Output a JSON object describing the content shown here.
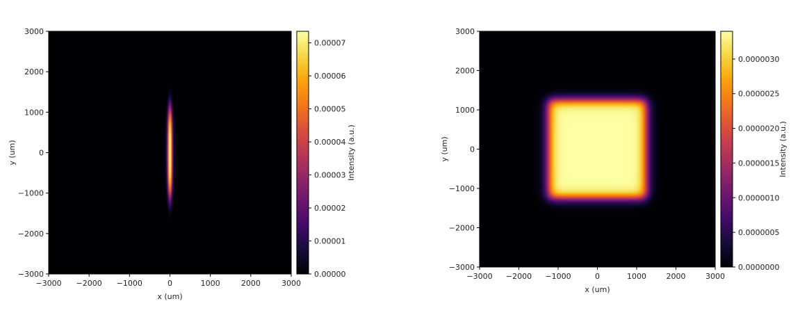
{
  "chart_data": [
    {
      "type": "heatmap",
      "xlabel": "x (um)",
      "ylabel": "y (um)",
      "xlim": [
        -3000,
        3000
      ],
      "ylim": [
        -3000,
        3000
      ],
      "xticks": [
        -3000,
        -2000,
        -1000,
        0,
        1000,
        2000,
        3000
      ],
      "yticks": [
        -3000,
        -2000,
        -1000,
        0,
        1000,
        2000,
        3000
      ],
      "x_tick_labels": [
        "−3000",
        "−2000",
        "−1000",
        "0",
        "1000",
        "2000",
        "3000"
      ],
      "y_tick_labels": [
        "−3000",
        "−2000",
        "−1000",
        "0",
        "1000",
        "2000",
        "3000"
      ],
      "colormap": "inferno",
      "colorbar": {
        "label": "Intensity (a.u.)",
        "range": [
          0,
          7.35e-05
        ],
        "ticks": [
          0,
          1e-05,
          2e-05,
          3e-05,
          4e-05,
          5e-05,
          6e-05,
          7e-05
        ],
        "tick_labels": [
          "0.00000",
          "0.00001",
          "0.00002",
          "0.00003",
          "0.00004",
          "0.00005",
          "0.00006",
          "0.00007"
        ]
      },
      "distribution": {
        "shape": "line-focus (narrow vertical ellipse)",
        "center": [
          0,
          0
        ],
        "x_half_width_um": 45,
        "y_extent_um": [
          -1800,
          1800
        ],
        "peak": 7.35e-05
      },
      "grid": false
    },
    {
      "type": "heatmap",
      "xlabel": "x (um)",
      "ylabel": "y (um)",
      "xlim": [
        -3000,
        3000
      ],
      "ylim": [
        -3000,
        3000
      ],
      "xticks": [
        -3000,
        -2000,
        -1000,
        0,
        1000,
        2000,
        3000
      ],
      "yticks": [
        -3000,
        -2000,
        -1000,
        0,
        1000,
        2000,
        3000
      ],
      "x_tick_labels": [
        "−3000",
        "−2000",
        "−1000",
        "0",
        "1000",
        "2000",
        "3000"
      ],
      "y_tick_labels": [
        "−3000",
        "−2000",
        "−1000",
        "0",
        "1000",
        "2000",
        "3000"
      ],
      "colormap": "inferno",
      "colorbar": {
        "label": "Intensity (a.u.)",
        "range": [
          0,
          3.4e-06
        ],
        "ticks": [
          0,
          5e-07,
          1e-06,
          1.5e-06,
          2e-06,
          2.5e-06,
          3e-06
        ],
        "tick_labels": [
          "0.0000000",
          "0.0000005",
          "0.0000010",
          "0.0000015",
          "0.0000020",
          "0.0000025",
          "0.0000030"
        ]
      },
      "distribution": {
        "shape": "flat-top square",
        "center": [
          0,
          0
        ],
        "half_width_um": 1250,
        "edge_softness_um": 220,
        "peak": 3.4e-06
      },
      "grid": false
    }
  ]
}
